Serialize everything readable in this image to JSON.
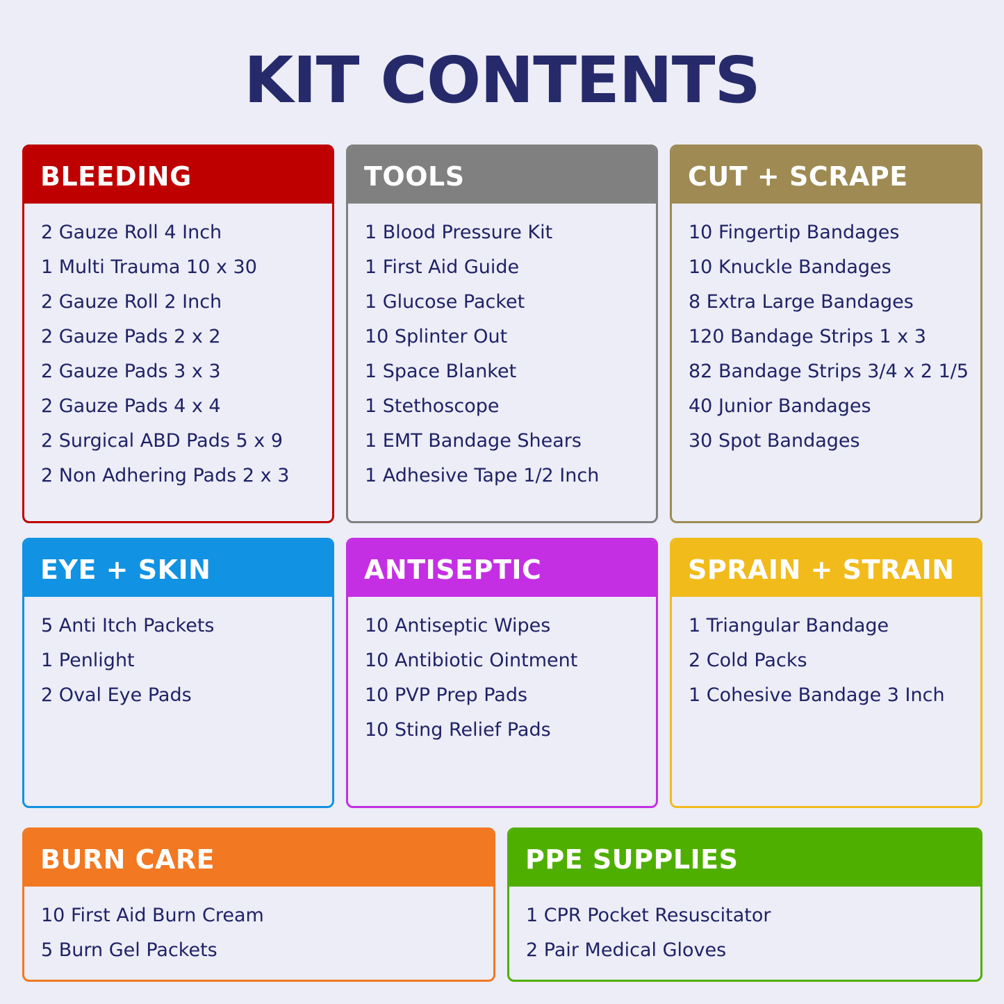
{
  "title": "KIT CONTENTS",
  "cards": [
    {
      "title": "BLEEDING",
      "color": "#bf0000",
      "items": [
        "2 Gauze Roll 4 Inch",
        "1 Multi Trauma 10 x 30",
        "2 Gauze Roll 2 Inch",
        "2 Gauze Pads 2 x 2",
        "2 Gauze Pads 3 x 3",
        "2 Gauze Pads 4 x 4",
        "2 Surgical ABD Pads 5 x 9",
        "2 Non Adhering Pads 2 x 3"
      ]
    },
    {
      "title": "TOOLS",
      "color": "#808080",
      "items": [
        "1 Blood Pressure Kit",
        "1 First Aid Guide",
        "1 Glucose Packet",
        "10 Splinter Out",
        "1 Space Blanket",
        "1 Stethoscope",
        "1 EMT Bandage Shears",
        "1 Adhesive Tape 1/2 Inch"
      ]
    },
    {
      "title": "CUT + SCRAPE",
      "color": "#9e8a52",
      "items": [
        "10 Fingertip Bandages",
        "10 Knuckle Bandages",
        "8 Extra Large Bandages",
        "120 Bandage Strips 1 x 3",
        "82 Bandage Strips 3/4 x 2 1/5",
        "40 Junior Bandages",
        "30 Spot Bandages"
      ]
    },
    {
      "title": "EYE + SKIN",
      "color": "#1192e3",
      "items": [
        "5 Anti Itch Packets",
        "1 Penlight",
        "2 Oval Eye Pads"
      ]
    },
    {
      "title": "ANTISEPTIC",
      "color": "#c42fe3",
      "items": [
        "10 Antiseptic Wipes",
        "10 Antibiotic Ointment",
        "10 PVP Prep Pads",
        "10 Sting Relief Pads"
      ]
    },
    {
      "title": "SPRAIN + STRAIN",
      "color": "#f2bb1c",
      "items": [
        "1 Triangular Bandage",
        "2 Cold Packs",
        "1 Cohesive Bandage 3 Inch"
      ]
    },
    {
      "title": "BURN CARE",
      "color": "#f27822",
      "items": [
        "10 First Aid Burn Cream",
        "5 Burn Gel Packets"
      ]
    },
    {
      "title": "PPE SUPPLIES",
      "color": "#4faf00",
      "items": [
        "1 CPR Pocket Resuscitator",
        "2 Pair Medical Gloves"
      ]
    }
  ]
}
